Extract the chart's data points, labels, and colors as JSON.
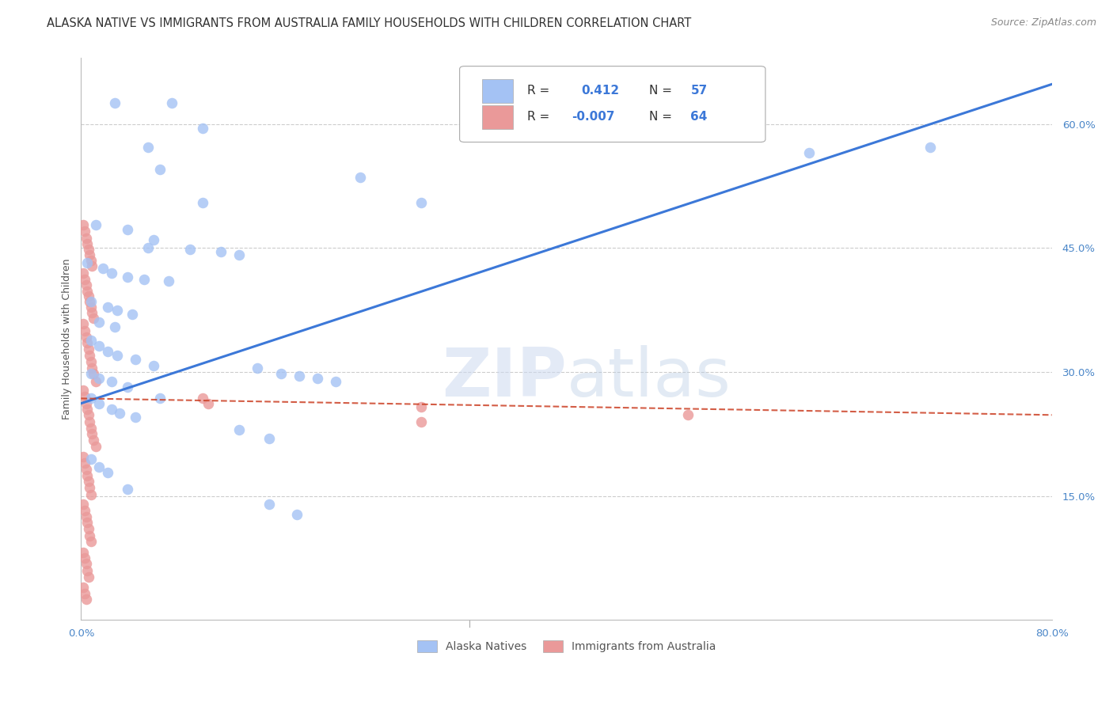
{
  "title": "ALASKA NATIVE VS IMMIGRANTS FROM AUSTRALIA FAMILY HOUSEHOLDS WITH CHILDREN CORRELATION CHART",
  "source": "Source: ZipAtlas.com",
  "ylabel": "Family Households with Children",
  "xlim": [
    0,
    0.8
  ],
  "ylim": [
    0,
    0.68
  ],
  "legend_label1": "Alaska Natives",
  "legend_label2": "Immigrants from Australia",
  "blue_color": "#a4c2f4",
  "pink_color": "#ea9999",
  "blue_line_color": "#3c78d8",
  "pink_line_color": "#cc4125",
  "tick_color": "#4a86c8",
  "title_color": "#333333",
  "background_color": "#ffffff",
  "grid_color": "#cccccc",
  "blue_scatter_x": [
    0.028,
    0.075,
    0.1,
    0.055,
    0.065,
    0.23,
    0.1,
    0.28,
    0.012,
    0.038,
    0.06,
    0.055,
    0.09,
    0.115,
    0.13,
    0.005,
    0.018,
    0.025,
    0.038,
    0.052,
    0.072,
    0.008,
    0.022,
    0.03,
    0.042,
    0.015,
    0.028,
    0.008,
    0.015,
    0.022,
    0.03,
    0.045,
    0.06,
    0.008,
    0.015,
    0.025,
    0.038,
    0.145,
    0.165,
    0.18,
    0.195,
    0.21,
    0.008,
    0.015,
    0.025,
    0.032,
    0.045,
    0.065,
    0.13,
    0.155,
    0.008,
    0.015,
    0.022,
    0.038,
    0.155,
    0.178,
    0.6,
    0.7
  ],
  "blue_scatter_y": [
    0.625,
    0.625,
    0.595,
    0.572,
    0.545,
    0.535,
    0.505,
    0.505,
    0.478,
    0.472,
    0.46,
    0.45,
    0.448,
    0.445,
    0.442,
    0.432,
    0.425,
    0.42,
    0.415,
    0.412,
    0.41,
    0.385,
    0.378,
    0.375,
    0.37,
    0.36,
    0.355,
    0.338,
    0.332,
    0.325,
    0.32,
    0.315,
    0.308,
    0.298,
    0.292,
    0.288,
    0.282,
    0.305,
    0.298,
    0.295,
    0.292,
    0.288,
    0.268,
    0.262,
    0.255,
    0.25,
    0.245,
    0.268,
    0.23,
    0.22,
    0.195,
    0.185,
    0.178,
    0.158,
    0.14,
    0.128,
    0.565,
    0.572
  ],
  "pink_scatter_x": [
    0.002,
    0.003,
    0.004,
    0.005,
    0.006,
    0.007,
    0.008,
    0.009,
    0.002,
    0.003,
    0.004,
    0.005,
    0.006,
    0.007,
    0.008,
    0.009,
    0.01,
    0.002,
    0.003,
    0.004,
    0.005,
    0.006,
    0.007,
    0.008,
    0.009,
    0.01,
    0.012,
    0.002,
    0.003,
    0.004,
    0.005,
    0.006,
    0.007,
    0.008,
    0.009,
    0.01,
    0.012,
    0.002,
    0.003,
    0.004,
    0.005,
    0.006,
    0.007,
    0.008,
    0.002,
    0.003,
    0.004,
    0.005,
    0.006,
    0.007,
    0.008,
    0.002,
    0.003,
    0.004,
    0.005,
    0.006,
    0.002,
    0.003,
    0.004,
    0.1,
    0.105,
    0.28,
    0.28,
    0.5
  ],
  "pink_scatter_y": [
    0.478,
    0.47,
    0.462,
    0.455,
    0.448,
    0.442,
    0.435,
    0.428,
    0.42,
    0.412,
    0.405,
    0.398,
    0.392,
    0.385,
    0.378,
    0.372,
    0.365,
    0.358,
    0.35,
    0.342,
    0.335,
    0.328,
    0.32,
    0.312,
    0.305,
    0.298,
    0.288,
    0.278,
    0.27,
    0.262,
    0.255,
    0.248,
    0.24,
    0.232,
    0.225,
    0.218,
    0.21,
    0.198,
    0.19,
    0.182,
    0.175,
    0.168,
    0.16,
    0.152,
    0.14,
    0.132,
    0.125,
    0.118,
    0.11,
    0.102,
    0.095,
    0.082,
    0.075,
    0.068,
    0.06,
    0.052,
    0.04,
    0.032,
    0.025,
    0.268,
    0.262,
    0.258,
    0.24,
    0.248
  ],
  "blue_line_x0": 0.0,
  "blue_line_y0": 0.262,
  "blue_line_x1": 0.8,
  "blue_line_y1": 0.648,
  "pink_line_x0": 0.0,
  "pink_line_y0": 0.268,
  "pink_line_x1": 0.8,
  "pink_line_y1": 0.248,
  "title_fontsize": 10.5,
  "source_fontsize": 9,
  "ylabel_fontsize": 9,
  "tick_fontsize": 9.5,
  "legend_fontsize": 11
}
